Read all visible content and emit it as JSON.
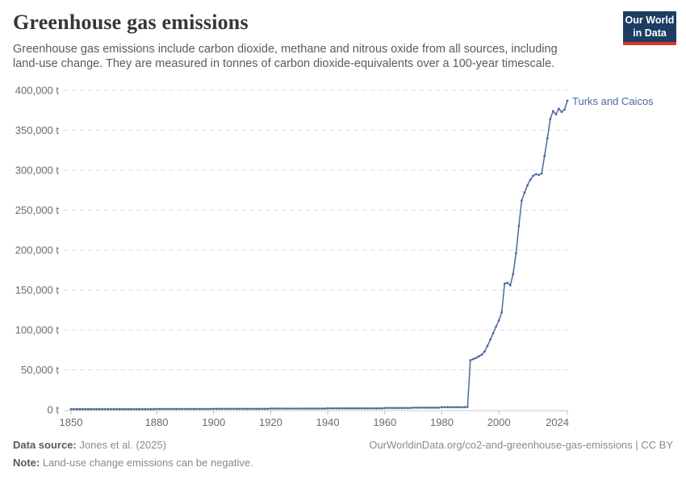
{
  "header": {
    "title": "Greenhouse gas emissions",
    "subtitle": "Greenhouse gas emissions include carbon dioxide, methane and nitrous oxide from all sources, including land-use change. They are measured in tonnes of carbon dioxide-equivalents over a 100-year timescale.",
    "logo": {
      "line1": "Our World",
      "line2": "in Data",
      "bg_color": "#1d3d63",
      "accent_color": "#d7352c"
    }
  },
  "chart_data": {
    "type": "line",
    "title": "Greenhouse gas emissions",
    "unit": "t",
    "grid": "dashed-horizontal",
    "legend": "end-of-line-label",
    "ylim": [
      0,
      400000
    ],
    "x_years": {
      "start": 1850,
      "end": 2024,
      "step": 1
    },
    "xticks": [
      1850,
      1880,
      1900,
      1920,
      1940,
      1960,
      1980,
      2000,
      2024
    ],
    "yticks": [
      {
        "value": 0,
        "label": "0 t"
      },
      {
        "value": 50000,
        "label": "50,000 t"
      },
      {
        "value": 100000,
        "label": "100,000 t"
      },
      {
        "value": 150000,
        "label": "150,000 t"
      },
      {
        "value": 200000,
        "label": "200,000 t"
      },
      {
        "value": 250000,
        "label": "250,000 t"
      },
      {
        "value": 300000,
        "label": "300,000 t"
      },
      {
        "value": 350000,
        "label": "350,000 t"
      },
      {
        "value": 400000,
        "label": "400,000 t"
      }
    ],
    "series": [
      {
        "name": "Turks and Caicos",
        "color": "#4c6a9c",
        "values": [
          800,
          800,
          800,
          800,
          800,
          800,
          800,
          800,
          800,
          800,
          800,
          800,
          800,
          800,
          800,
          800,
          800,
          800,
          800,
          800,
          800,
          800,
          800,
          800,
          800,
          800,
          800,
          800,
          800,
          800,
          1000,
          1000,
          1000,
          1000,
          1000,
          1000,
          1000,
          1000,
          1000,
          1000,
          1000,
          1000,
          1000,
          1000,
          1000,
          1000,
          1000,
          1000,
          1000,
          1000,
          1200,
          1200,
          1200,
          1200,
          1200,
          1200,
          1200,
          1200,
          1200,
          1200,
          1200,
          1200,
          1200,
          1200,
          1200,
          1200,
          1200,
          1200,
          1200,
          1200,
          1500,
          1500,
          1500,
          1500,
          1500,
          1500,
          1500,
          1500,
          1500,
          1500,
          1500,
          1500,
          1500,
          1500,
          1500,
          1500,
          1500,
          1500,
          1500,
          1500,
          1800,
          1800,
          1800,
          1800,
          1800,
          1800,
          1800,
          1800,
          1800,
          1800,
          1800,
          1800,
          1800,
          1800,
          1800,
          1800,
          1800,
          1800,
          1800,
          1800,
          2200,
          2200,
          2200,
          2200,
          2200,
          2200,
          2200,
          2200,
          2200,
          2200,
          2600,
          2600,
          2600,
          2600,
          2600,
          2600,
          2600,
          2600,
          2600,
          2600,
          3200,
          3200,
          3200,
          3200,
          3200,
          3200,
          3200,
          3200,
          3200,
          3500,
          62000,
          63500,
          65000,
          67000,
          69000,
          73000,
          80000,
          88000,
          96000,
          104000,
          112000,
          122000,
          158000,
          159000,
          156000,
          170000,
          196000,
          230000,
          262000,
          272000,
          281000,
          288000,
          293000,
          295000,
          294000,
          296000,
          318000,
          340000,
          364000,
          374000,
          370000,
          377000,
          373000,
          376000,
          387000
        ]
      }
    ]
  },
  "footer": {
    "source_label": "Data source:",
    "source_value": "Jones et al. (2025)",
    "note_label": "Note:",
    "note_value": "Land-use change emissions can be negative.",
    "attribution": "OurWorldinData.org/co2-and-greenhouse-gas-emissions | CC BY"
  }
}
